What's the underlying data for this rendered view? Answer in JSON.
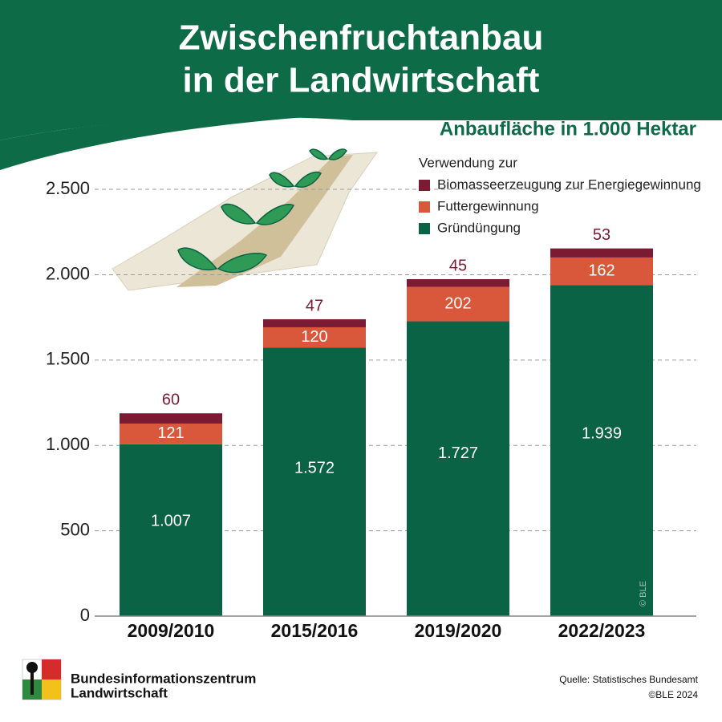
{
  "chart_data": {
    "type": "stacked-bar",
    "title": [
      "Zwischenfruchtanbau",
      "in der Landwirtschaft"
    ],
    "subtitle": "Anbaufläche in 1.000 Hektar",
    "legend_title": "Verwendung zur",
    "categories": [
      "2009/2010",
      "2015/2016",
      "2019/2020",
      "2022/2023"
    ],
    "series": [
      {
        "name": "Gründüngung",
        "color": "#0b6346",
        "values": [
          1007,
          1572,
          1727,
          1939
        ],
        "value_labels": [
          "1.007",
          "1.572",
          "1.727",
          "1.939"
        ]
      },
      {
        "name": "Futtergewinnung",
        "color": "#d9583b",
        "values": [
          121,
          120,
          202,
          162
        ]
      },
      {
        "name": "Biomasseerzeugung zur Energiegewinnung",
        "color": "#7a1a33",
        "values": [
          60,
          47,
          45,
          53
        ]
      }
    ],
    "ylim": [
      0,
      2700
    ],
    "yticks": [
      0,
      500,
      {
        "value": 1000,
        "label": "1.000"
      },
      {
        "value": 1500,
        "label": "1.500"
      },
      {
        "value": 2000,
        "label": "2.000"
      },
      {
        "value": 2500,
        "label": "2.500"
      }
    ],
    "grid": true,
    "footer": {
      "org": [
        "Bundesinformationszentrum",
        "Landwirtschaft"
      ],
      "source": "Quelle: Statistisches Bundesamt",
      "copyright": "©BLE 2024",
      "watermark": "© BLE"
    }
  }
}
